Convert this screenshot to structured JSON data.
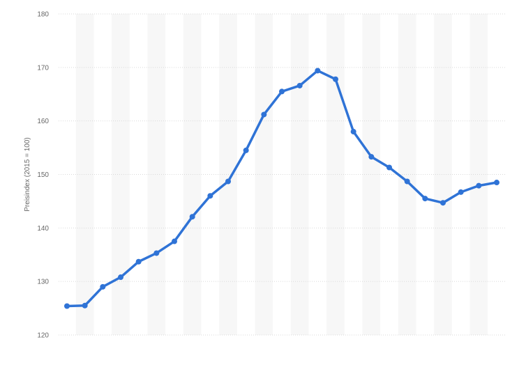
{
  "chart_data": {
    "type": "line",
    "title": "",
    "xlabel": "",
    "ylabel": "Preisindex (2015 = 100)",
    "ylim": [
      120,
      180
    ],
    "yticks": [
      120,
      130,
      140,
      150,
      160,
      170,
      180
    ],
    "grid": true,
    "legend": "none",
    "colors": {
      "line": "#2f73d6",
      "grid": "#d9d9d9",
      "band": "#f7f7f7",
      "axis_text": "#666666"
    },
    "series": [
      {
        "values": [
          125.4,
          125.5,
          129.0,
          130.8,
          133.7,
          135.3,
          137.5,
          142.1,
          146.0,
          148.7,
          154.5,
          161.2,
          165.5,
          166.6,
          169.4,
          167.8,
          158.0,
          153.3,
          151.3,
          148.7,
          145.5,
          144.7,
          146.7,
          147.9,
          148.5
        ]
      }
    ]
  }
}
